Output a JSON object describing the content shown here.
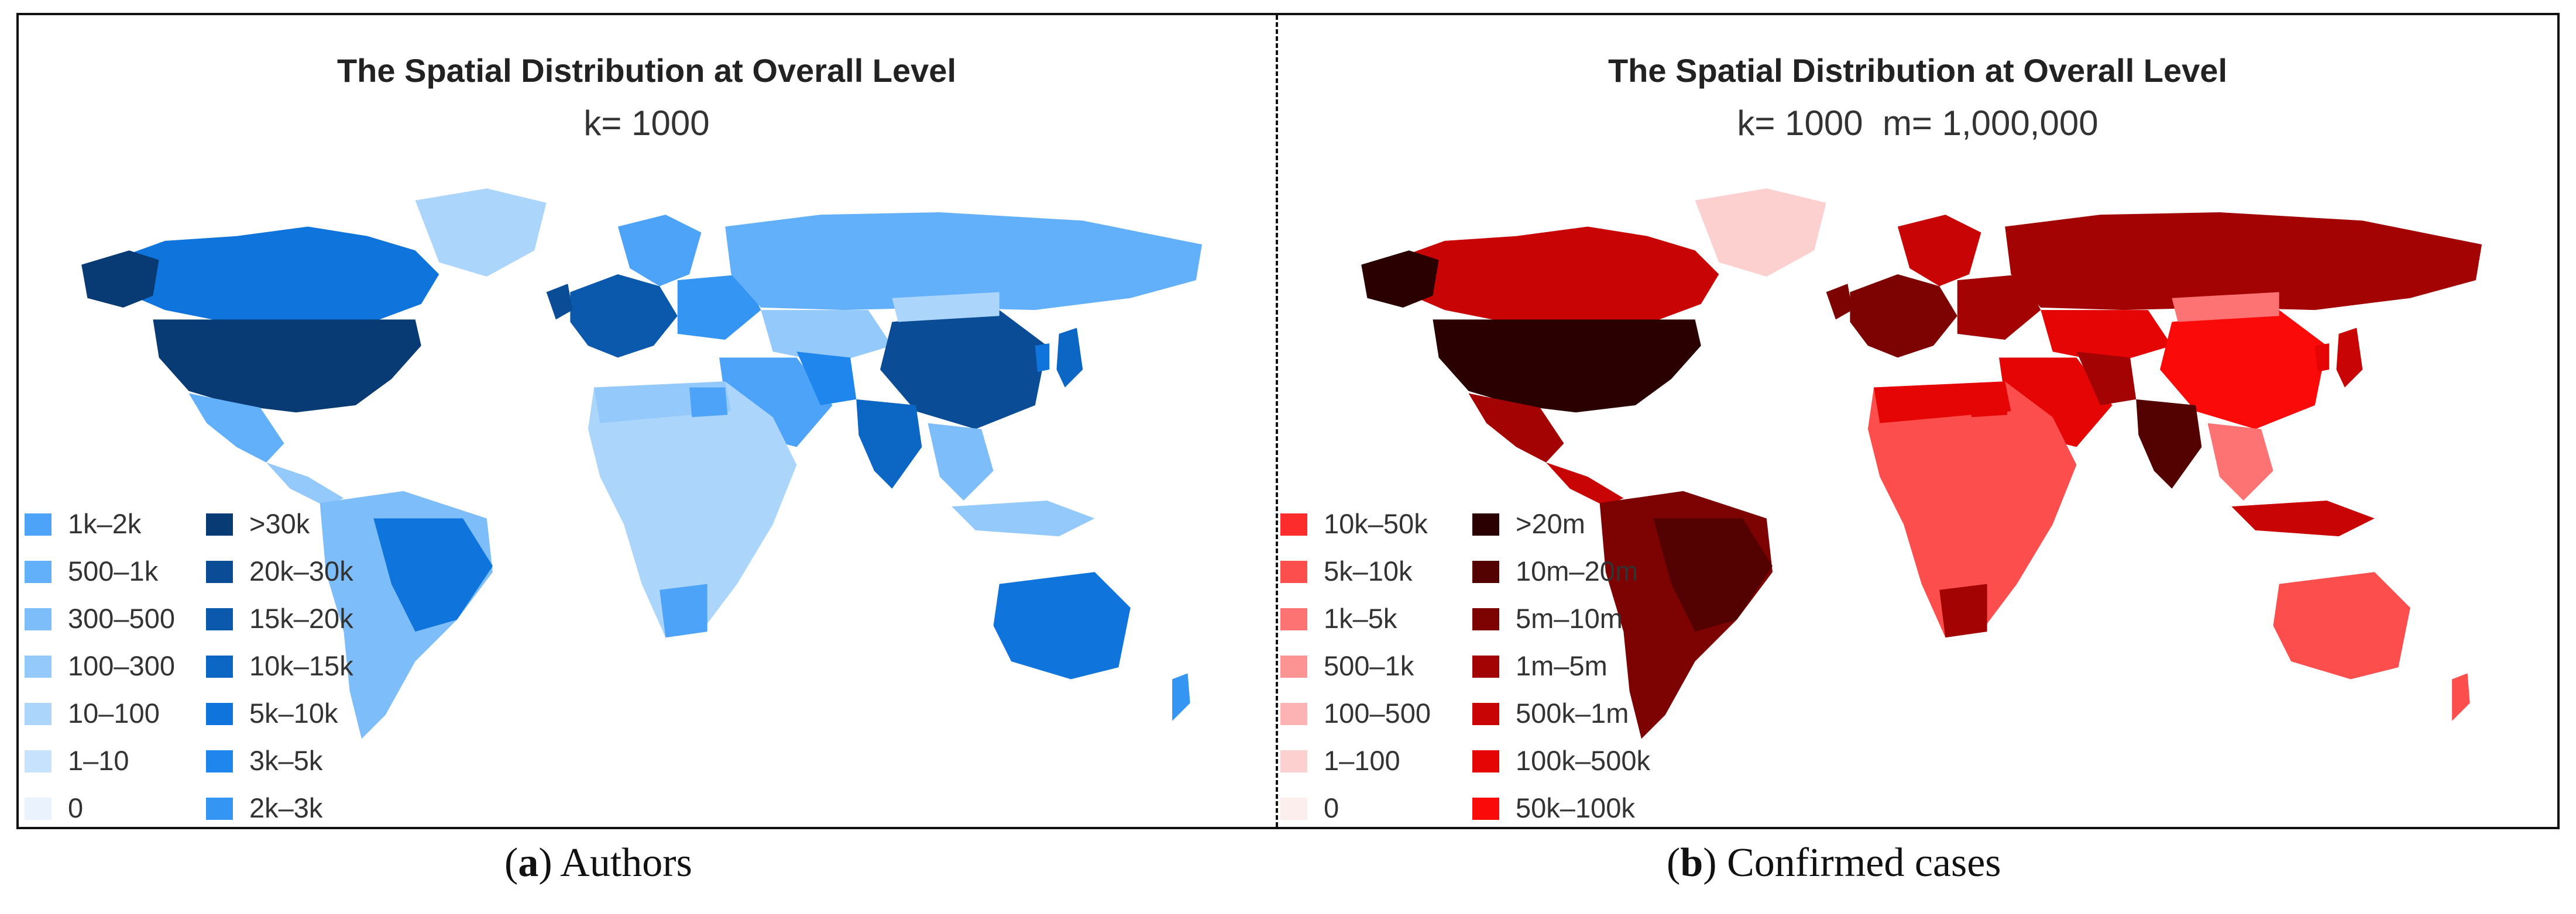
{
  "panel_a": {
    "title": "The Spatial Distribution at Overall Level",
    "subtitle": "k= 1000",
    "legend_col1": [
      {
        "label": "1k–2k",
        "color": "#4da3f7"
      },
      {
        "label": "500–1k",
        "color": "#62affa"
      },
      {
        "label": "300–500",
        "color": "#7cbdfa"
      },
      {
        "label": "100–300",
        "color": "#94c9fb"
      },
      {
        "label": "10–100",
        "color": "#acd5fc"
      },
      {
        "label": "1–10",
        "color": "#c7e2fc"
      },
      {
        "label": "0",
        "color": "#e9f2fd"
      }
    ],
    "legend_col2": [
      {
        "label": ">30k",
        "color": "#083b73"
      },
      {
        "label": "20k–30k",
        "color": "#0a4d96"
      },
      {
        "label": "15k–20k",
        "color": "#0b59ac"
      },
      {
        "label": "10k–15k",
        "color": "#0c66c4"
      },
      {
        "label": "5k–10k",
        "color": "#0f74dc"
      },
      {
        "label": "3k–5k",
        "color": "#1f86ee"
      },
      {
        "label": "2k–3k",
        "color": "#3595f2"
      }
    ],
    "caption_letter": "a",
    "caption_text": " Authors"
  },
  "panel_b": {
    "title": "The Spatial Distribution at Overall Level",
    "subtitle": "k= 1000  m= 1,000,000",
    "legend_col1": [
      {
        "label": "10k–50k",
        "color": "#fc2c2c"
      },
      {
        "label": "5k–10k",
        "color": "#fd4e4e"
      },
      {
        "label": "1k–5k",
        "color": "#fd7272"
      },
      {
        "label": "500–1k",
        "color": "#fd9494"
      },
      {
        "label": "100–500",
        "color": "#fdb3b3"
      },
      {
        "label": "1–100",
        "color": "#fdd0d0"
      },
      {
        "label": "0",
        "color": "#fdeeee"
      }
    ],
    "legend_col2": [
      {
        "label": ">20m",
        "color": "#2a0000"
      },
      {
        "label": "10m–20m",
        "color": "#540101"
      },
      {
        "label": "5m–10m",
        "color": "#7d0202"
      },
      {
        "label": "1m–5m",
        "color": "#a30303"
      },
      {
        "label": "500k–1m",
        "color": "#c90404"
      },
      {
        "label": "100k–500k",
        "color": "#e60505"
      },
      {
        "label": "50k–100k",
        "color": "#fb0a0a"
      }
    ],
    "caption_letter": "b",
    "caption_text": " Confirmed cases"
  }
}
